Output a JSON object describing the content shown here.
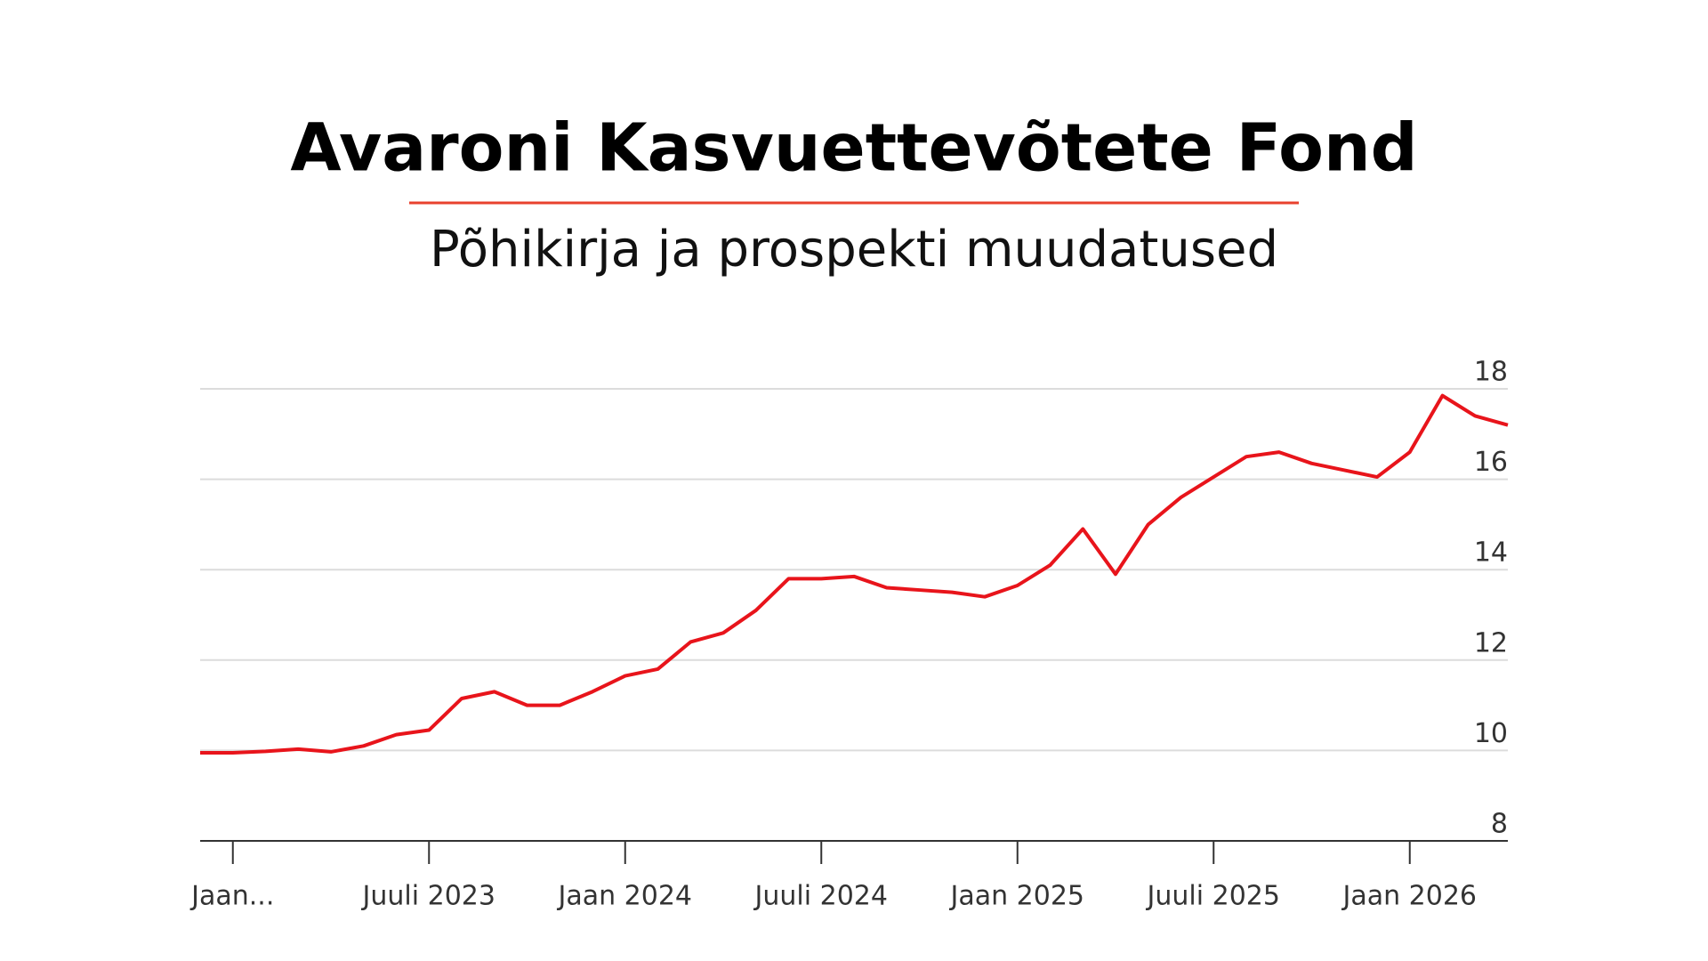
{
  "title": "Avaroni Kasvuettevõtete Fond",
  "subtitle": "Põhikirja ja prospekti muudatused",
  "chart_data": {
    "type": "line",
    "x": [
      "2022-12",
      "2023-01",
      "2023-02",
      "2023-03",
      "2023-04",
      "2023-05",
      "2023-06",
      "2023-07",
      "2023-08",
      "2023-09",
      "2023-10",
      "2023-11",
      "2023-12",
      "2024-01",
      "2024-02",
      "2024-03",
      "2024-04",
      "2024-05",
      "2024-06",
      "2024-07",
      "2024-08",
      "2024-09",
      "2024-10",
      "2024-11",
      "2024-12",
      "2025-01",
      "2025-02",
      "2025-03",
      "2025-04",
      "2025-05",
      "2025-06",
      "2025-07",
      "2025-08",
      "2025-09",
      "2025-10",
      "2025-11",
      "2025-12",
      "2026-01",
      "2026-02",
      "2026-03",
      "2026-04"
    ],
    "series": [
      {
        "color": "#e8141b",
        "values": [
          9.95,
          9.95,
          9.98,
          10.03,
          9.97,
          10.1,
          10.35,
          10.45,
          11.15,
          11.3,
          11.0,
          11.0,
          11.3,
          11.65,
          11.8,
          12.4,
          12.6,
          13.1,
          13.8,
          13.8,
          13.85,
          13.6,
          13.55,
          13.5,
          13.4,
          13.65,
          14.1,
          14.9,
          13.9,
          15.0,
          15.6,
          16.05,
          16.5,
          16.6,
          16.35,
          16.2,
          16.05,
          16.6,
          17.85,
          17.4,
          17.2
        ]
      }
    ],
    "xlim": [
      "2022-12",
      "2026-04"
    ],
    "xticks": [
      {
        "value": "2023-01",
        "label": "Jaan..."
      },
      {
        "value": "2023-07",
        "label": "Juuli 2023"
      },
      {
        "value": "2024-01",
        "label": "Jaan 2024"
      },
      {
        "value": "2024-07",
        "label": "Juuli 2024"
      },
      {
        "value": "2025-01",
        "label": "Jaan 2025"
      },
      {
        "value": "2025-07",
        "label": "Juuli 2025"
      },
      {
        "value": "2026-01",
        "label": "Jaan 2026"
      }
    ],
    "ylim": [
      8,
      18
    ],
    "yticks": [
      8,
      10,
      12,
      14,
      16,
      18
    ],
    "grid": true
  }
}
